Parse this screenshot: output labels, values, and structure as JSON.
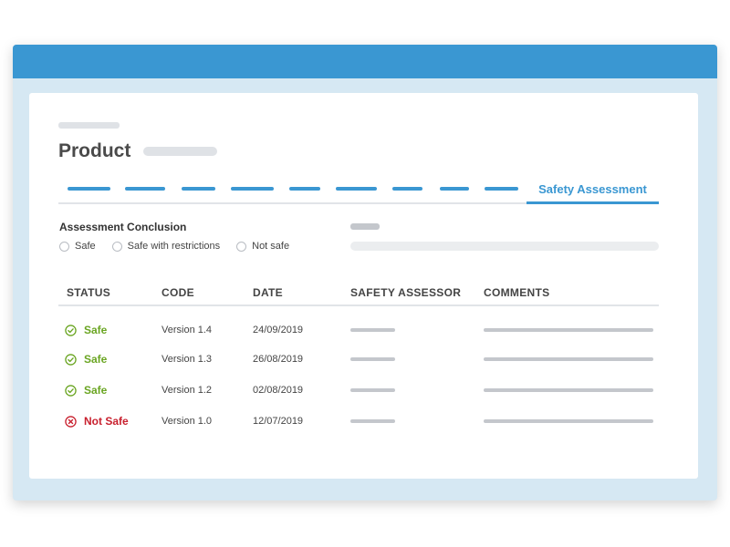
{
  "product": {
    "title": "Product"
  },
  "tabs": {
    "active_label": "Safety Assessment"
  },
  "assessment": {
    "label": "Assessment Conclusion",
    "options": [
      "Safe",
      "Safe with restrictions",
      "Not safe"
    ]
  },
  "table": {
    "headers": {
      "status": "STATUS",
      "code": "CODE",
      "date": "DATE",
      "assessor": "SAFETY ASSESSOR",
      "comments": "COMMENTS"
    },
    "rows": [
      {
        "status": "Safe",
        "code": "Version 1.4",
        "date": "24/09/2019"
      },
      {
        "status": "Safe",
        "code": "Version 1.3",
        "date": "26/08/2019"
      },
      {
        "status": "Safe",
        "code": "Version 1.2",
        "date": "02/08/2019"
      },
      {
        "status": "Not Safe",
        "code": "Version 1.0",
        "date": "12/07/2019"
      }
    ]
  },
  "colors": {
    "accent": "#3a97d2",
    "safe": "#6aa522",
    "not_safe": "#c8202e",
    "window_bg": "#d6e8f3"
  },
  "icons": {
    "safe": "check-circle-icon",
    "not_safe": "x-circle-icon"
  }
}
